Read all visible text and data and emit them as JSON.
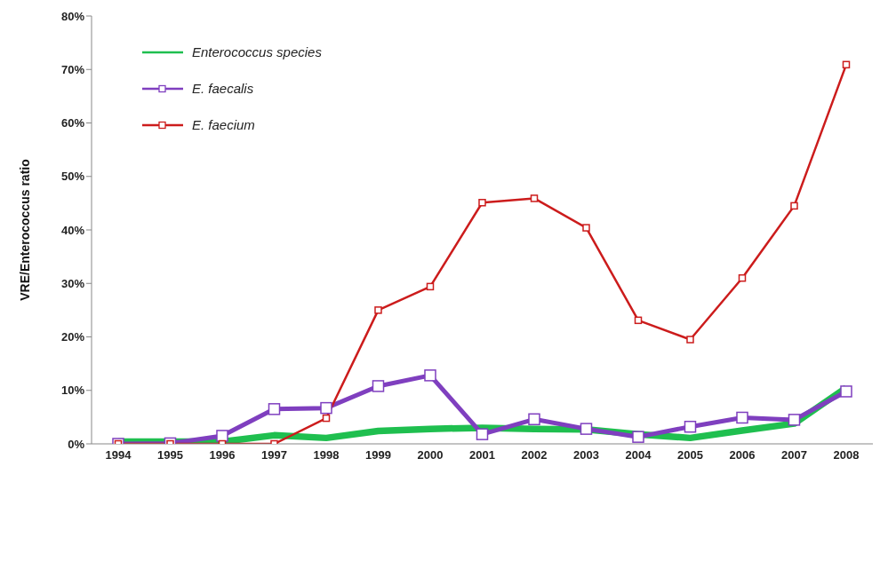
{
  "chart_data": {
    "type": "line",
    "ylabel": "VRE/Enterococcus ratio",
    "categories": [
      "1994",
      "1995",
      "1996",
      "1997",
      "1998",
      "1999",
      "2000",
      "2001",
      "2002",
      "2003",
      "2004",
      "2005",
      "2006",
      "2007",
      "2008"
    ],
    "series": [
      {
        "name": "Enterococcus species",
        "color": "#1fbf4f",
        "marker": "none",
        "values": [
          0.4,
          0.4,
          0.4,
          1.6,
          1.1,
          2.4,
          2.8,
          3.0,
          2.8,
          2.7,
          1.8,
          1.1,
          2.5,
          3.8,
          10.5
        ]
      },
      {
        "name": "E. faecalis",
        "color": "#7f3fbf",
        "marker": "square",
        "values": [
          0,
          0.1,
          1.5,
          6.5,
          6.7,
          10.8,
          12.8,
          1.8,
          4.6,
          2.8,
          1.3,
          3.2,
          4.9,
          4.5,
          9.8
        ]
      },
      {
        "name": "E. faecium",
        "color": "#cc1c1c",
        "marker": "square",
        "values": [
          0,
          0,
          0,
          0,
          4.8,
          25.0,
          29.4,
          45.1,
          45.9,
          40.4,
          23.1,
          19.5,
          31.0,
          44.5,
          70.9
        ]
      }
    ],
    "ylim": [
      0,
      80
    ],
    "yticks": [
      {
        "value": 0,
        "label": "0%"
      },
      {
        "value": 10,
        "label": "10%"
      },
      {
        "value": 20,
        "label": "20%"
      },
      {
        "value": 30,
        "label": "30%"
      },
      {
        "value": 40,
        "label": "40%"
      },
      {
        "value": 50,
        "label": "50%"
      },
      {
        "value": 60,
        "label": "60%"
      },
      {
        "value": 70,
        "label": "70%"
      },
      {
        "value": 80,
        "label": "80%"
      }
    ],
    "grid": false,
    "legend": "top left",
    "line_style": "solid"
  }
}
